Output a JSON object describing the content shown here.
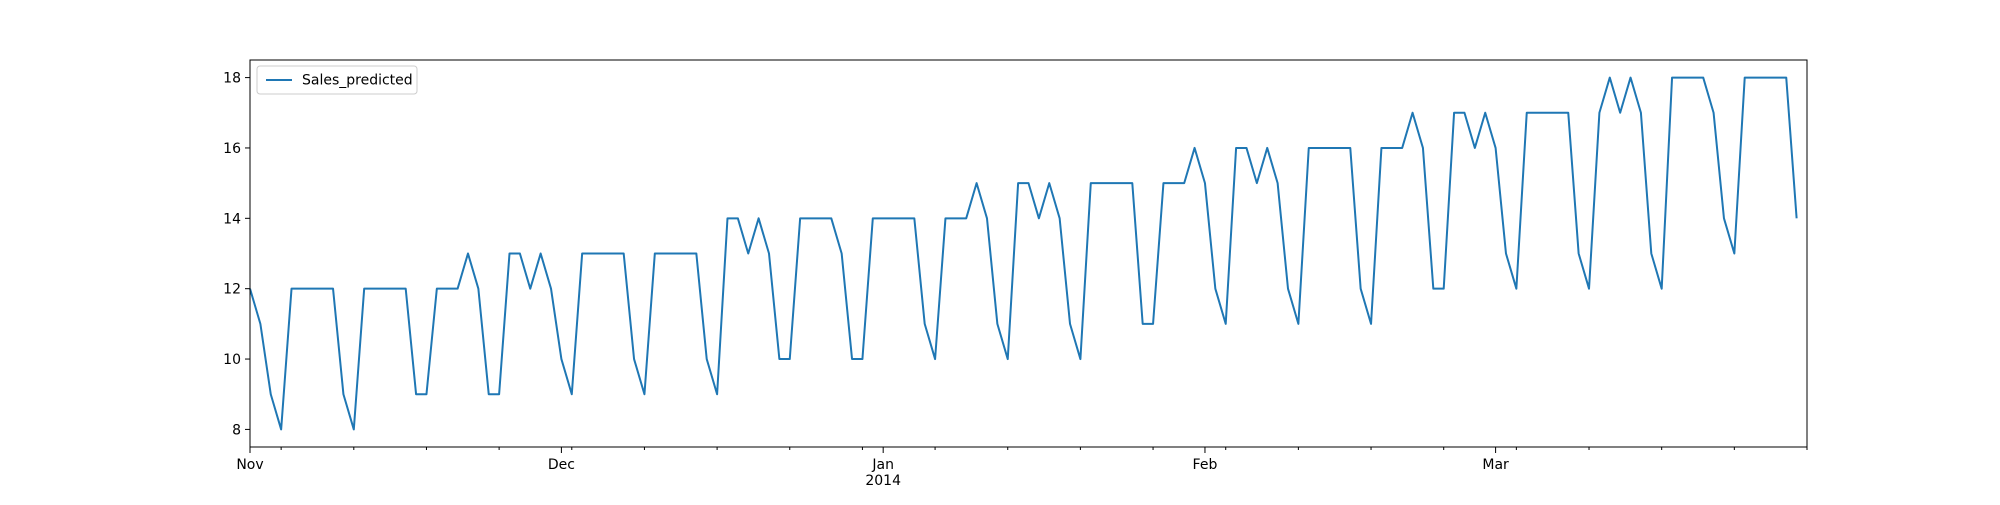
{
  "chart_data": {
    "type": "line",
    "title": "",
    "xlabel": "",
    "ylabel": "",
    "legend": {
      "position": "top-left",
      "entries": [
        "Sales_predicted"
      ]
    },
    "grid": false,
    "color": "#1f77b4",
    "xlim": [
      "2013-11-01",
      "2014-03-31"
    ],
    "ylim": [
      7.5,
      18.5
    ],
    "x_major_ticks": [
      {
        "date": "2013-11-01",
        "label": "Nov"
      },
      {
        "date": "2013-12-01",
        "label": "Dec"
      },
      {
        "date": "2014-01-01",
        "label": "Jan",
        "sublabel": "2014"
      },
      {
        "date": "2014-02-01",
        "label": "Feb"
      },
      {
        "date": "2014-03-01",
        "label": "Mar"
      }
    ],
    "x_minor_ticks": [
      "2013-11-04",
      "2013-11-11",
      "2013-11-18",
      "2013-11-25",
      "2013-12-02",
      "2013-12-09",
      "2013-12-16",
      "2013-12-23",
      "2013-12-30",
      "2014-01-06",
      "2014-01-13",
      "2014-01-20",
      "2014-01-27",
      "2014-02-03",
      "2014-02-10",
      "2014-02-17",
      "2014-02-24",
      "2014-03-03",
      "2014-03-10",
      "2014-03-17",
      "2014-03-24",
      "2014-03-31"
    ],
    "y_ticks": [
      8,
      10,
      12,
      14,
      16,
      18
    ],
    "series": [
      {
        "name": "Sales_predicted",
        "start": "2013-11-01",
        "freq": "daily",
        "values": [
          12,
          11,
          9,
          8,
          12,
          12,
          12,
          12,
          12,
          9,
          8,
          12,
          12,
          12,
          12,
          12,
          9,
          9,
          12,
          12,
          12,
          13,
          12,
          9,
          9,
          13,
          13,
          12,
          13,
          12,
          10,
          9,
          13,
          13,
          13,
          13,
          13,
          10,
          9,
          13,
          13,
          13,
          13,
          13,
          10,
          9,
          14,
          14,
          13,
          14,
          13,
          10,
          10,
          14,
          14,
          14,
          14,
          13,
          10,
          10,
          14,
          14,
          14,
          14,
          14,
          11,
          10,
          14,
          14,
          14,
          15,
          14,
          11,
          10,
          15,
          15,
          14,
          15,
          14,
          11,
          10,
          15,
          15,
          15,
          15,
          15,
          11,
          11,
          15,
          15,
          15,
          16,
          15,
          12,
          11,
          16,
          16,
          15,
          16,
          15,
          12,
          11,
          16,
          16,
          16,
          16,
          16,
          12,
          11,
          16,
          16,
          16,
          17,
          16,
          12,
          12,
          17,
          17,
          16,
          17,
          16,
          13,
          12,
          17,
          17,
          17,
          17,
          17,
          13,
          12,
          17,
          18,
          17,
          18,
          17,
          13,
          12,
          18,
          18,
          18,
          18,
          17,
          14,
          13,
          18,
          18,
          18,
          18,
          18,
          14
        ]
      }
    ]
  }
}
